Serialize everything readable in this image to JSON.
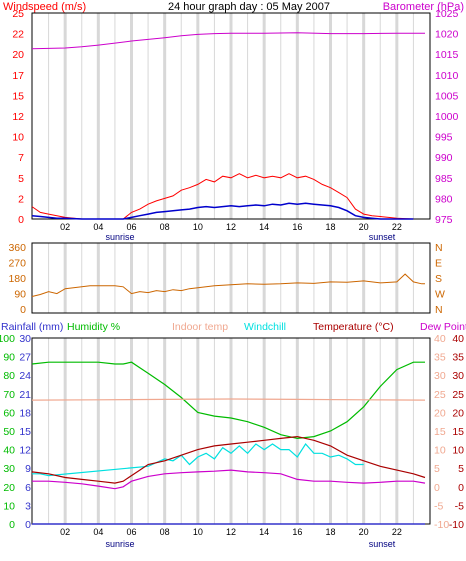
{
  "colors": {
    "grid_vline": "#d8d8d8",
    "frame": "#000000",
    "wind_gust": "#ff0000",
    "wind_avg": "#0000cc",
    "barometer": "#cc00cc",
    "direction": "#cc6600",
    "humidity": "#00bb00",
    "indoor": "#f0a890",
    "windchill": "#00e0e0",
    "temperature": "#aa0000",
    "dewpoint": "#cc00cc",
    "rainfall": "#3333cc"
  },
  "chart_data": [
    {
      "type": "line",
      "title": "24 hour graph day : 05 May 2007",
      "x_ticks": [
        "02",
        "04",
        "06",
        "08",
        "10",
        "12",
        "14",
        "16",
        "18",
        "20",
        "22"
      ],
      "day_labels": {
        "sunrise": "sunrise",
        "sunset": "sunset"
      },
      "left_axis": {
        "label": "Windspeed (m/s)",
        "ticks": [
          0,
          2,
          5,
          7,
          10,
          12,
          15,
          17,
          20,
          22,
          25
        ],
        "ylim": [
          0,
          25
        ]
      },
      "right_axis": {
        "label": "Barometer (hPa)",
        "ticks": [
          975,
          980,
          985,
          990,
          995,
          1000,
          1005,
          1010,
          1015,
          1020,
          1025
        ],
        "ylim": [
          975,
          1025
        ]
      },
      "xlim": [
        0,
        24
      ],
      "series": [
        {
          "key": "barometer",
          "axis": "right",
          "x": [
            0,
            2,
            3,
            4,
            5,
            6,
            7,
            8,
            9,
            10,
            11,
            12,
            14,
            16,
            18,
            20,
            22,
            23.7
          ],
          "y": [
            1016.3,
            1016.5,
            1016.8,
            1017.2,
            1017.7,
            1018.2,
            1018.6,
            1019.0,
            1019.5,
            1019.8,
            1020.0,
            1020.1,
            1020.1,
            1020.2,
            1020.0,
            1020.0,
            1020.1,
            1020.1
          ]
        },
        {
          "key": "wind_gust",
          "axis": "left",
          "x": [
            0,
            0.5,
            1,
            1.5,
            2,
            3,
            4,
            5,
            5.5,
            6,
            6.5,
            7,
            7.5,
            8,
            8.5,
            9,
            9.5,
            10,
            10.5,
            11,
            11.5,
            12,
            12.5,
            13,
            13.5,
            14,
            14.5,
            15,
            15.5,
            16,
            16.5,
            17,
            17.5,
            18,
            18.5,
            19,
            19.5,
            20,
            20.5,
            21,
            21.5,
            22,
            23
          ],
          "y": [
            1.5,
            0.8,
            0.6,
            0.4,
            0.2,
            0,
            0,
            0,
            0,
            0.8,
            1.2,
            1.8,
            2.2,
            2.5,
            2.8,
            3.5,
            3.8,
            4.2,
            4.8,
            4.5,
            5.2,
            5.0,
            5.5,
            5.0,
            5.3,
            5.0,
            5.2,
            5.0,
            5.5,
            5.0,
            5.2,
            4.8,
            4.2,
            3.8,
            3.2,
            2.6,
            1.2,
            0.6,
            0.4,
            0.3,
            0.2,
            0.1,
            0
          ]
        },
        {
          "key": "wind_avg",
          "axis": "left",
          "x": [
            0,
            0.5,
            1,
            1.5,
            2,
            3,
            4,
            5,
            5.5,
            6,
            6.5,
            7,
            7.5,
            8,
            8.5,
            9,
            9.5,
            10,
            10.5,
            11,
            11.5,
            12,
            12.5,
            13,
            13.5,
            14,
            14.5,
            15,
            15.5,
            16,
            16.5,
            17,
            17.5,
            18,
            18.5,
            19,
            19.5,
            20,
            20.5,
            21,
            22,
            23
          ],
          "y": [
            0.4,
            0.3,
            0.2,
            0.1,
            0.1,
            0,
            0,
            0,
            0,
            0.2,
            0.4,
            0.6,
            0.8,
            0.9,
            1.0,
            1.1,
            1.2,
            1.4,
            1.5,
            1.4,
            1.5,
            1.6,
            1.5,
            1.6,
            1.7,
            1.6,
            1.8,
            1.7,
            1.9,
            1.8,
            1.9,
            1.8,
            1.7,
            1.6,
            1.4,
            1.0,
            0.4,
            0.2,
            0.1,
            0,
            0,
            0
          ]
        }
      ]
    },
    {
      "type": "line",
      "left_axis": {
        "ticks": [
          0,
          90,
          180,
          270,
          360
        ],
        "ylim": [
          0,
          360
        ]
      },
      "right_axis": {
        "ticks": [
          "N",
          "W",
          "S",
          "E",
          "N"
        ]
      },
      "x_ticks": [
        "02",
        "04",
        "06",
        "08",
        "10",
        "12",
        "14",
        "16",
        "18",
        "20",
        "22"
      ],
      "xlim": [
        0,
        24
      ],
      "series": [
        {
          "key": "direction",
          "x": [
            0,
            0.5,
            1,
            1.5,
            2,
            2.5,
            3,
            3.5,
            4,
            4.5,
            5,
            5.5,
            6,
            6.5,
            7,
            7.5,
            8,
            8.5,
            9,
            9.5,
            10,
            11,
            12,
            13,
            14,
            15,
            16,
            17,
            18,
            19,
            20,
            21,
            22,
            22.5,
            23,
            23.5,
            23.7
          ],
          "y": [
            85,
            95,
            110,
            100,
            125,
            130,
            135,
            140,
            140,
            140,
            140,
            135,
            100,
            110,
            105,
            115,
            110,
            120,
            115,
            125,
            130,
            140,
            145,
            150,
            148,
            150,
            155,
            152,
            160,
            158,
            165,
            155,
            160,
            200,
            160,
            150,
            150
          ]
        }
      ]
    },
    {
      "type": "line",
      "axis_labels": {
        "rainfall": "Rainfall (mm)",
        "humidity": "Humidity %",
        "indoor": "Indoor temp",
        "windchill": "Windchill",
        "temperature": "Temperature (°C)",
        "dewpoint": "Dew Point"
      },
      "humidity_ticks": [
        0,
        10,
        20,
        30,
        40,
        50,
        60,
        70,
        80,
        90,
        100
      ],
      "rainfall_ticks": [
        0,
        3,
        6,
        9,
        12,
        15,
        18,
        21,
        24,
        27,
        30
      ],
      "indoor_ticks": [
        -10,
        -5,
        0,
        5,
        10,
        15,
        20,
        25,
        30,
        35,
        40
      ],
      "temperature_ticks": [
        -10,
        -5,
        0,
        5,
        10,
        15,
        20,
        25,
        30,
        35,
        40
      ],
      "x_ticks": [
        "02",
        "04",
        "06",
        "08",
        "10",
        "12",
        "14",
        "16",
        "18",
        "20",
        "22"
      ],
      "day_labels": {
        "sunrise": "sunrise",
        "sunset": "sunset"
      },
      "xlim": [
        0,
        24
      ],
      "series": [
        {
          "key": "humidity",
          "axis": "humidity",
          "x": [
            0,
            1,
            2,
            3,
            4,
            5,
            5.5,
            6,
            6.5,
            7,
            8,
            9,
            10,
            11,
            12,
            13,
            14,
            15,
            16,
            17,
            18,
            19,
            20,
            21,
            22,
            23,
            23.7
          ],
          "y": [
            86,
            87,
            87,
            87,
            87,
            86,
            86,
            87,
            84,
            81,
            75,
            68,
            60,
            58,
            57,
            55,
            52,
            48,
            46,
            47,
            50,
            55,
            63,
            74,
            83,
            87,
            87
          ]
        },
        {
          "key": "indoor",
          "axis": "temperature",
          "x": [
            0,
            4,
            8,
            12,
            16,
            20,
            23.7
          ],
          "y": [
            23.3,
            23.4,
            23.5,
            23.6,
            23.5,
            23.4,
            23.3
          ]
        },
        {
          "key": "windchill",
          "axis": "temperature",
          "x": [
            0,
            0.5,
            1,
            7,
            7.5,
            8,
            8.5,
            9,
            9.5,
            10,
            10.5,
            11,
            11.5,
            12,
            12.5,
            13,
            13.5,
            14,
            14.5,
            15,
            15.5,
            16,
            16.5,
            17,
            17.5,
            18,
            18.5,
            19,
            19.5,
            20
          ],
          "y": [
            3.5,
            3.5,
            3.0,
            5.5,
            6.5,
            7.5,
            7.0,
            8.5,
            6.0,
            8.0,
            9.0,
            7.5,
            10.5,
            9.0,
            11.0,
            9.0,
            11.5,
            10.0,
            11.5,
            10.0,
            10.0,
            8.0,
            11.5,
            9.0,
            9.0,
            8.0,
            8.5,
            7.5,
            6.0,
            6.0
          ]
        },
        {
          "key": "temperature",
          "axis": "temperature",
          "x": [
            0,
            1,
            2,
            3,
            4,
            5,
            5.5,
            6,
            6.5,
            7,
            8,
            9,
            10,
            11,
            12,
            13,
            14,
            15,
            16,
            17,
            18,
            19,
            20,
            21,
            22,
            23,
            23.7
          ],
          "y": [
            4.0,
            3.5,
            2.5,
            2.0,
            1.5,
            1.0,
            1.5,
            3.0,
            4.5,
            6.0,
            7.0,
            8.5,
            10.0,
            11.0,
            11.5,
            12.0,
            12.5,
            13.0,
            13.5,
            12.5,
            11.0,
            8.5,
            7.0,
            5.5,
            4.5,
            3.5,
            2.5
          ]
        },
        {
          "key": "dewpoint",
          "axis": "temperature",
          "x": [
            0,
            1,
            2,
            3,
            4,
            5,
            5.5,
            6,
            7,
            8,
            9,
            10,
            11,
            12,
            13,
            14,
            15,
            16,
            17,
            18,
            19,
            20,
            21,
            22,
            23,
            23.7
          ],
          "y": [
            1.5,
            1.5,
            1.2,
            0.8,
            0.2,
            -0.5,
            0.0,
            1.5,
            2.8,
            3.5,
            3.8,
            4.0,
            4.2,
            4.5,
            4.0,
            3.8,
            3.5,
            2.0,
            1.5,
            1.5,
            1.2,
            1.0,
            1.2,
            1.5,
            1.5,
            1.0
          ]
        },
        {
          "key": "rainfall",
          "axis": "rainfall",
          "x": [
            0,
            23.7
          ],
          "y": [
            0,
            0
          ]
        }
      ]
    }
  ]
}
